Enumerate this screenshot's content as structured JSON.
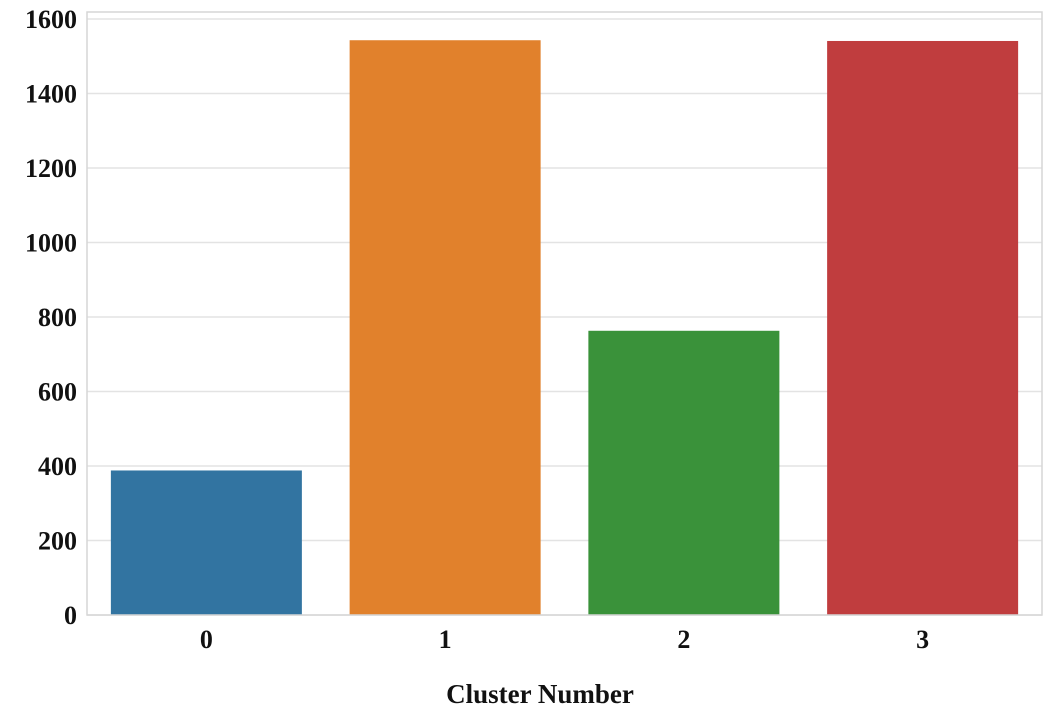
{
  "chart_data": {
    "type": "bar",
    "title": "",
    "xlabel": "Cluster Number",
    "ylabel": "",
    "categories": [
      "0",
      "1",
      "2",
      "3"
    ],
    "values": [
      388,
      1543,
      763,
      1541
    ],
    "colors": [
      "#3274a1",
      "#e1812c",
      "#3a923a",
      "#c03d3e"
    ],
    "yticks": [
      "0",
      "200",
      "400",
      "600",
      "800",
      "1000",
      "1200",
      "1400",
      "1600"
    ],
    "ylim": [
      0,
      1600
    ],
    "grid": true,
    "legend": "none"
  }
}
